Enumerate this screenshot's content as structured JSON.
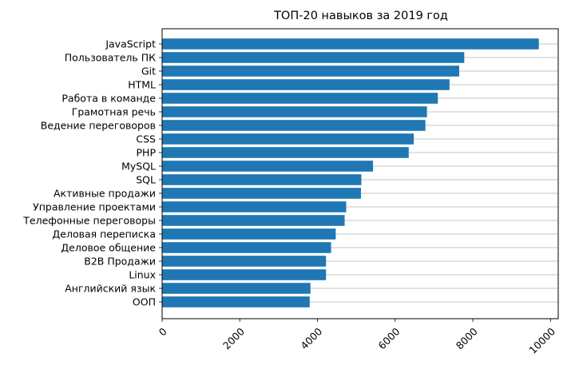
{
  "chart_data": {
    "type": "bar",
    "orientation": "horizontal",
    "title": "ТОП-20 навыков за 2019 год",
    "xlabel": "",
    "ylabel": "",
    "categories": [
      "JavaScript",
      "Пользователь ПК",
      "Git",
      "HTML",
      "Работа в команде",
      "Грамотная речь",
      "Ведение переговоров",
      "CSS",
      "PHP",
      "MySQL",
      "SQL",
      "Активные продажи",
      "Управление проектами",
      "Телефонные переговоры",
      "Деловая переписка",
      "Деловое общение",
      "B2B Продажи",
      "Linux",
      "Английский язык",
      "ООП"
    ],
    "values": [
      9700,
      7780,
      7650,
      7400,
      7100,
      6820,
      6780,
      6480,
      6350,
      5430,
      5130,
      5120,
      4740,
      4700,
      4470,
      4350,
      4220,
      4220,
      3820,
      3800
    ],
    "xticks": [
      "0",
      "2000",
      "4000",
      "6000",
      "8000",
      "10000"
    ],
    "xlim": [
      0,
      10200
    ],
    "grid": "horizontal lines at bars",
    "bar_color": "#1f77b4",
    "grid_color": "#b0b0b0"
  }
}
